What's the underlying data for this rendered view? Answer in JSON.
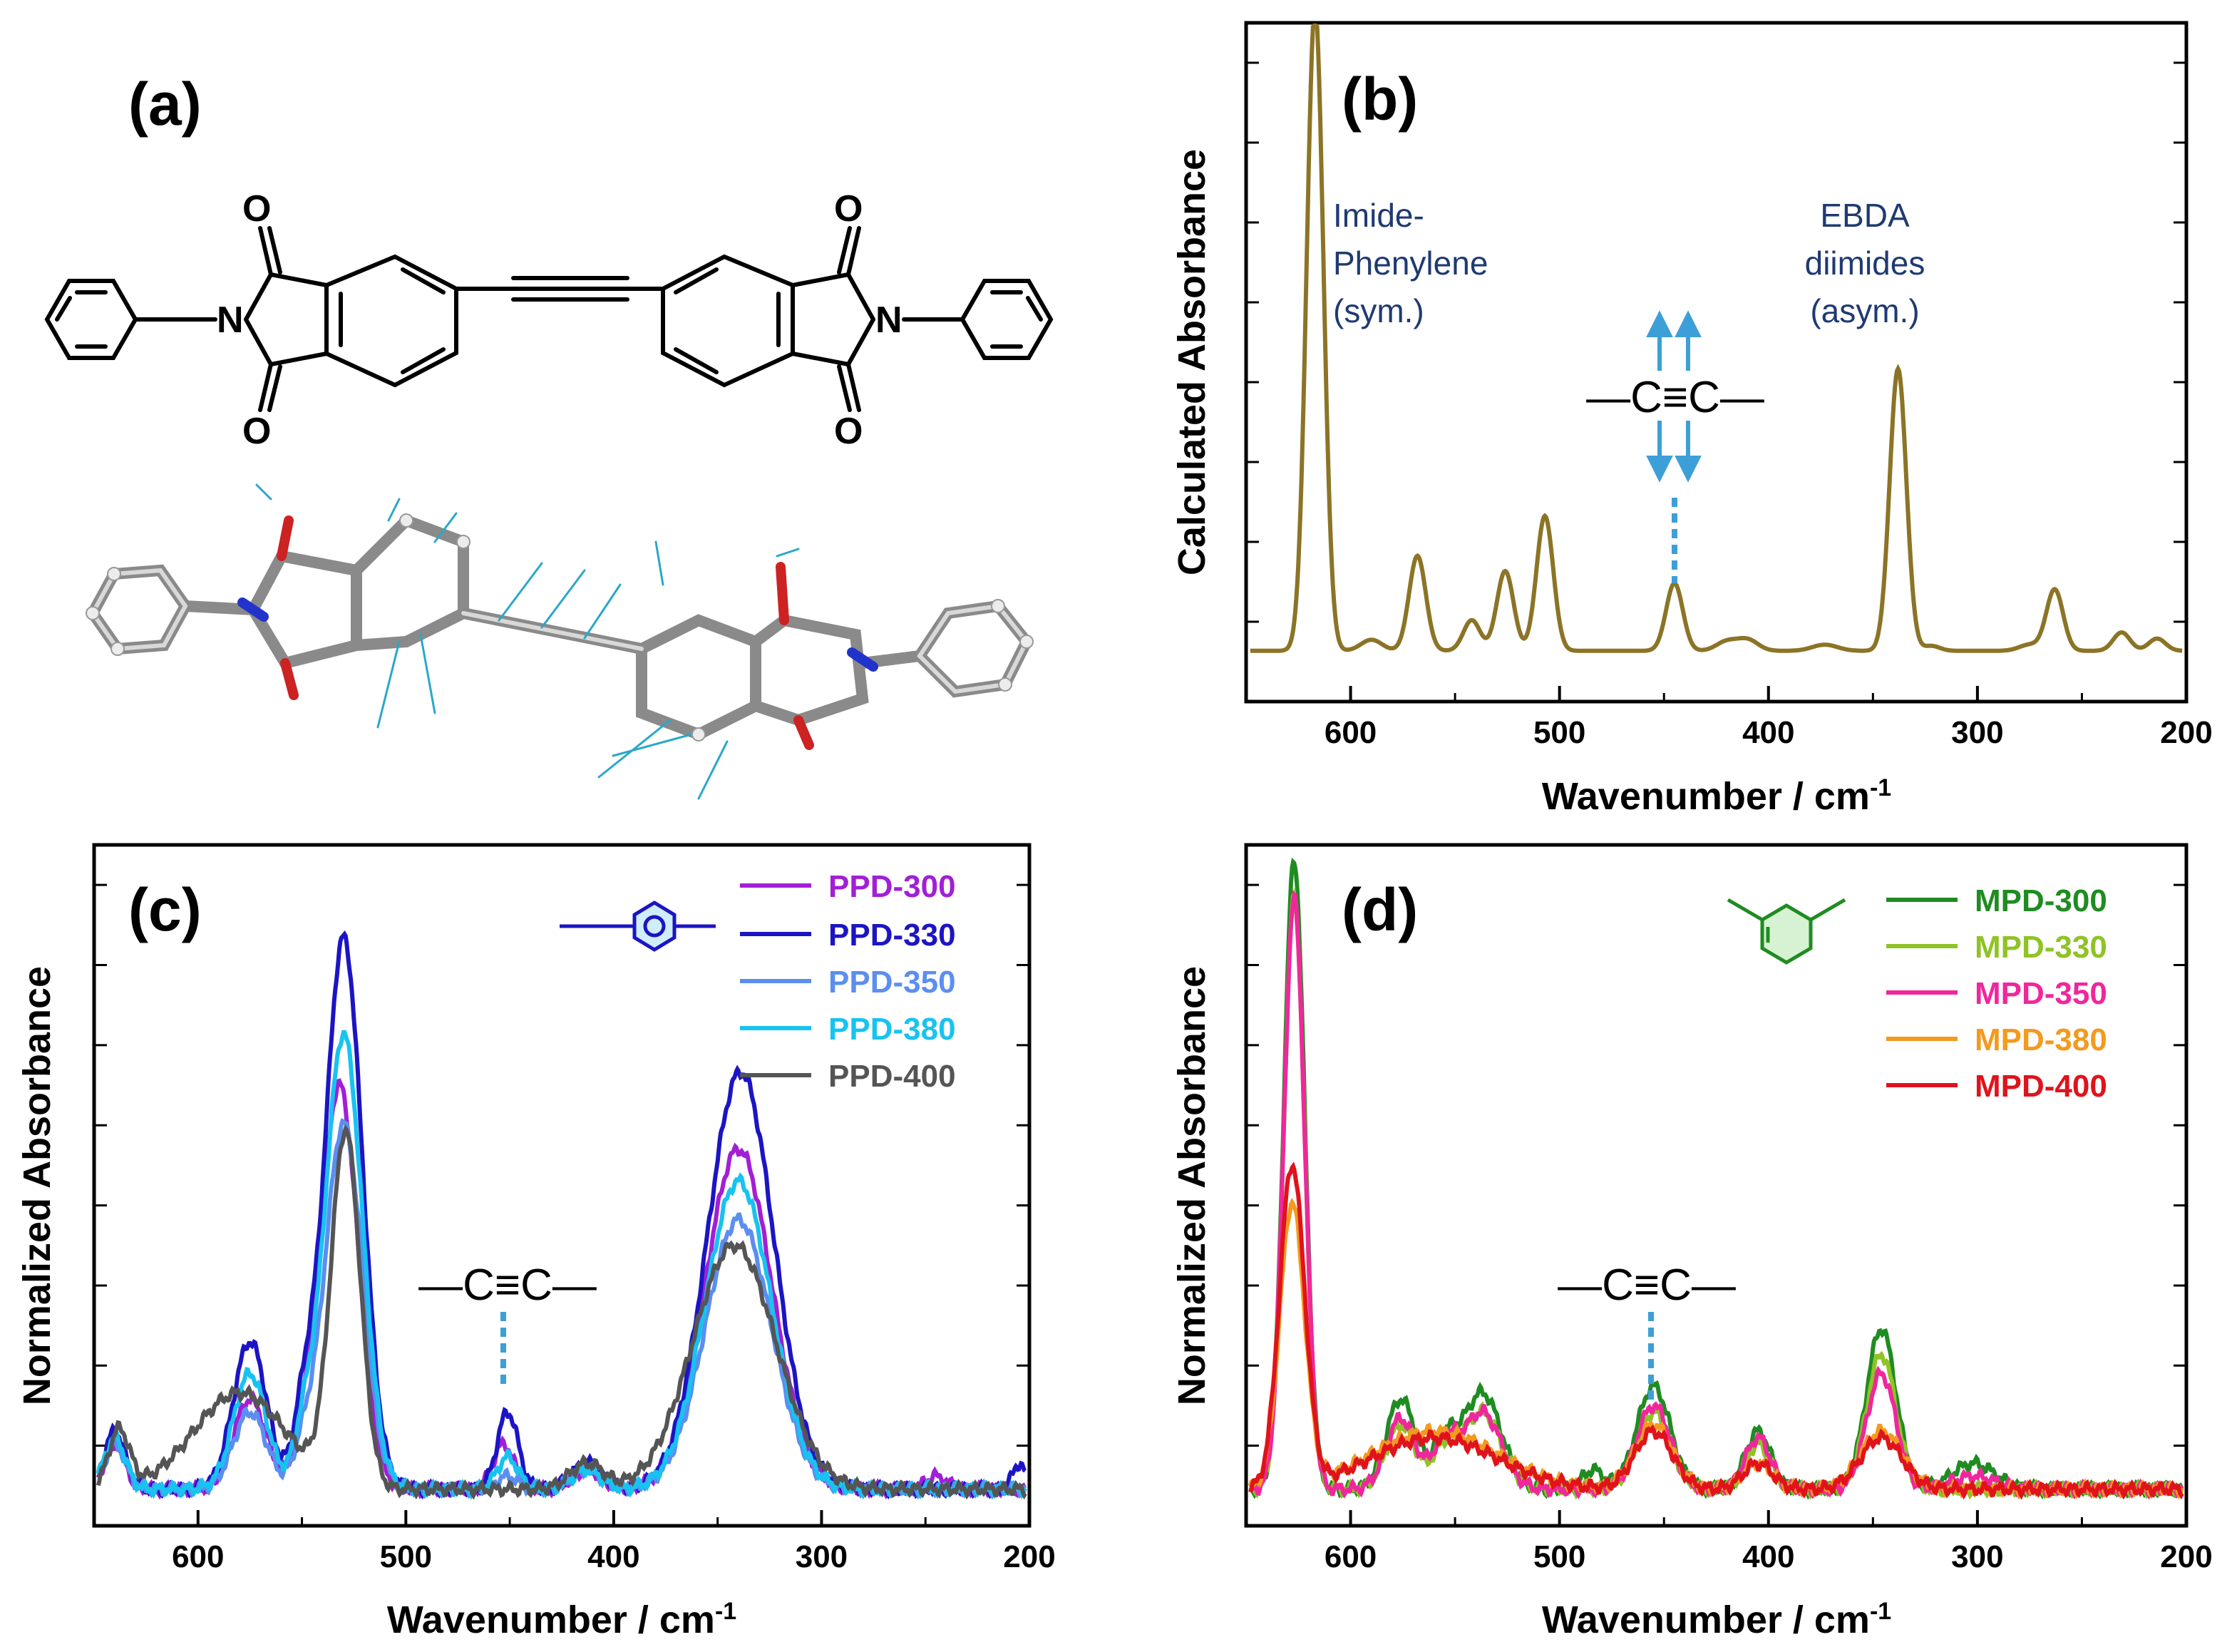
{
  "panels": {
    "a": {
      "label": "(a)"
    },
    "b": {
      "label": "(b)"
    },
    "c": {
      "label": "(c)"
    },
    "d": {
      "label": "(d)"
    }
  },
  "molecule": {
    "atoms": {
      "O": "O",
      "N": "N"
    }
  },
  "colors": {
    "calc": "#8b7426",
    "PPD-300": "#a21fd6",
    "PPD-330": "#1c14c4",
    "PPD-350": "#5b8ef0",
    "PPD-380": "#17c3f0",
    "PPD-400": "#555555",
    "MPD-300": "#1f8c21",
    "MPD-330": "#8fc326",
    "MPD-350": "#f0279c",
    "MPD-380": "#f39a1f",
    "MPD-400": "#e0131c",
    "arrow": "#3d9fd8"
  },
  "annotations": {
    "b_peak1": [
      "Imide-",
      "Phenylene",
      "(sym.)"
    ],
    "b_peak2": [
      "EBDA",
      "diimides",
      "(asym.)"
    ],
    "cc_label": "—C≡C—"
  },
  "chart_data": [
    {
      "id": "b",
      "type": "line",
      "xlabel": "Wavenumber / cm",
      "xlabel_sup": "-1",
      "ylabel": "Calculated Absorbance",
      "xlim": [
        650,
        200
      ],
      "ylim": [
        0,
        1
      ],
      "xticks": [
        600,
        500,
        400,
        300,
        200
      ],
      "series": [
        {
          "name": "Calculated",
          "baseline": 0.02,
          "peaks": [
            [
              617,
              1.05,
              4
            ],
            [
              590,
              0.018,
              5
            ],
            [
              568,
              0.155,
              4
            ],
            [
              542,
              0.05,
              4
            ],
            [
              526,
              0.13,
              4
            ],
            [
              507,
              0.22,
              4
            ],
            [
              445,
              0.11,
              4
            ],
            [
              420,
              0.015,
              5
            ],
            [
              410,
              0.018,
              5
            ],
            [
              373,
              0.01,
              6
            ],
            [
              338,
              0.46,
              4
            ],
            [
              322,
              0.008,
              4
            ],
            [
              275,
              0.01,
              5
            ],
            [
              263,
              0.1,
              4
            ],
            [
              231,
              0.03,
              4
            ],
            [
              214,
              0.02,
              4
            ]
          ]
        }
      ]
    },
    {
      "id": "c",
      "type": "line",
      "xlabel": "Wavenumber / cm",
      "xlabel_sup": "-1",
      "ylabel": "Normalized Absorbance",
      "xlim": [
        650,
        200
      ],
      "ylim": [
        0,
        1
      ],
      "xticks": [
        600,
        500,
        400,
        300,
        200
      ],
      "series": [
        {
          "name": "PPD-300",
          "peaks": [
            [
              640,
              0.07,
              5
            ],
            [
              575,
              0.14,
              8
            ],
            [
              549,
              0.06,
              5
            ],
            [
              532,
              0.63,
              9
            ],
            [
              453,
              0.07,
              5
            ],
            [
              413,
              0.03,
              7
            ],
            [
              340,
              0.53,
              16
            ],
            [
              245,
              0.02,
              5
            ]
          ]
        },
        {
          "name": "PPD-330",
          "peaks": [
            [
              640,
              0.09,
              5
            ],
            [
              575,
              0.23,
              8
            ],
            [
              549,
              0.11,
              5
            ],
            [
              530,
              0.86,
              9
            ],
            [
              451,
              0.12,
              5
            ],
            [
              413,
              0.04,
              7
            ],
            [
              339,
              0.65,
              16
            ],
            [
              205,
              0.04,
              3
            ]
          ]
        },
        {
          "name": "PPD-350",
          "peaks": [
            [
              640,
              0.07,
              5
            ],
            [
              575,
              0.12,
              8
            ],
            [
              549,
              0.06,
              5
            ],
            [
              530,
              0.57,
              9
            ],
            [
              451,
              0.02,
              5
            ],
            [
              413,
              0.03,
              7
            ],
            [
              340,
              0.42,
              16
            ]
          ]
        },
        {
          "name": "PPD-380",
          "peaks": [
            [
              640,
              0.08,
              5
            ],
            [
              575,
              0.18,
              8
            ],
            [
              549,
              0.08,
              5
            ],
            [
              530,
              0.71,
              9
            ],
            [
              451,
              0.05,
              5
            ],
            [
              413,
              0.03,
              7
            ],
            [
              340,
              0.48,
              16
            ]
          ]
        },
        {
          "name": "PPD-400",
          "peaks": [
            [
              638,
              0.09,
              5
            ],
            [
              580,
              0.15,
              22
            ],
            [
              529,
              0.55,
              7
            ],
            [
              413,
              0.04,
              8
            ],
            [
              342,
              0.38,
              20
            ]
          ]
        }
      ]
    },
    {
      "id": "d",
      "type": "line",
      "xlabel": "Wavenumber / cm",
      "xlabel_sup": "-1",
      "ylabel": "Normalized Absorbance",
      "xlim": [
        650,
        200
      ],
      "ylim": [
        0,
        1
      ],
      "xticks": [
        600,
        500,
        400,
        300,
        200
      ],
      "series": [
        {
          "name": "MPD-300",
          "peaks": [
            [
              627,
              0.98,
              5
            ],
            [
              576,
              0.14,
              7
            ],
            [
              555,
              0.07,
              6
            ],
            [
              537,
              0.15,
              9
            ],
            [
              484,
              0.03,
              5
            ],
            [
              455,
              0.16,
              8
            ],
            [
              405,
              0.09,
              6
            ],
            [
              346,
              0.25,
              7
            ],
            [
              302,
              0.04,
              10
            ]
          ]
        },
        {
          "name": "MPD-330",
          "peaks": [
            [
              627,
              0.92,
              5
            ],
            [
              576,
              0.1,
              7
            ],
            [
              555,
              0.06,
              6
            ],
            [
              537,
              0.12,
              9
            ],
            [
              455,
              0.12,
              8
            ],
            [
              405,
              0.07,
              6
            ],
            [
              346,
              0.21,
              7
            ]
          ]
        },
        {
          "name": "MPD-350",
          "peaks": [
            [
              627,
              0.92,
              5
            ],
            [
              576,
              0.11,
              7
            ],
            [
              555,
              0.07,
              6
            ],
            [
              537,
              0.12,
              9
            ],
            [
              455,
              0.13,
              8
            ],
            [
              405,
              0.08,
              6
            ],
            [
              346,
              0.18,
              7
            ],
            [
              302,
              0.02,
              10
            ]
          ]
        },
        {
          "name": "MPD-380",
          "peaks": [
            [
              628,
              0.44,
              6
            ],
            [
              560,
              0.09,
              30
            ],
            [
              455,
              0.1,
              9
            ],
            [
              405,
              0.04,
              7
            ],
            [
              346,
              0.09,
              10
            ]
          ]
        },
        {
          "name": "MPD-400",
          "peaks": [
            [
              628,
              0.5,
              6
            ],
            [
              560,
              0.08,
              30
            ],
            [
              455,
              0.09,
              9
            ],
            [
              405,
              0.04,
              7
            ],
            [
              346,
              0.08,
              10
            ]
          ]
        }
      ]
    }
  ]
}
